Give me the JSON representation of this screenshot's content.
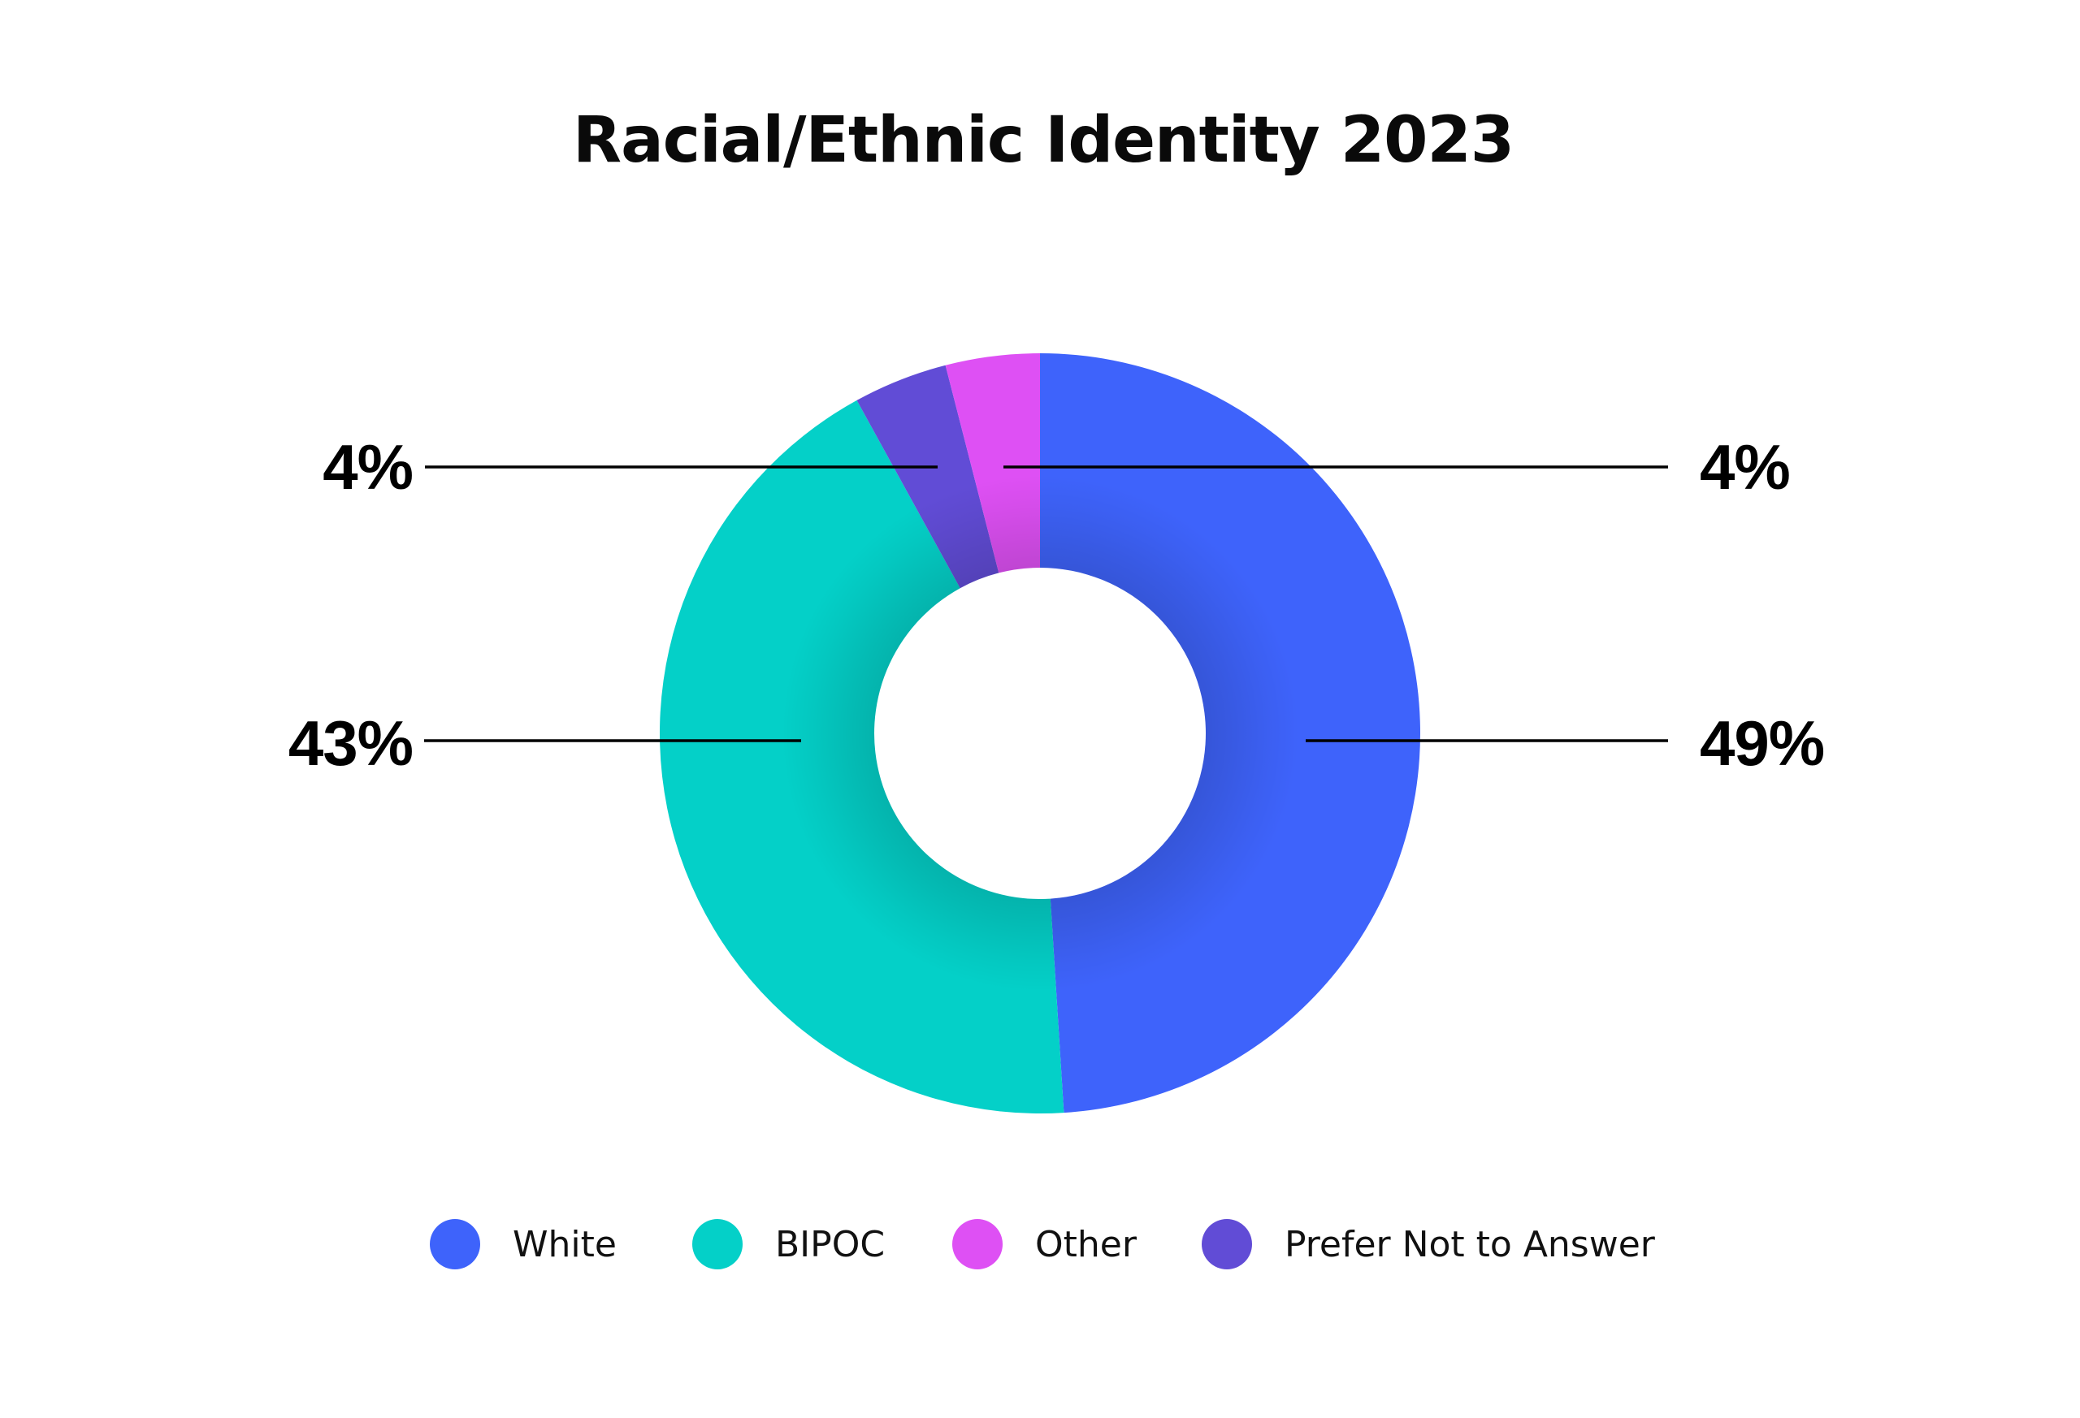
{
  "chart_data": {
    "type": "pie",
    "subtype": "donut",
    "title": "Racial/Ethnic Identity 2023",
    "categories": [
      "White",
      "BIPOC",
      "Other",
      "Prefer Not to Answer"
    ],
    "values": [
      49,
      43,
      4,
      4
    ],
    "value_labels": [
      "49%",
      "43%",
      "4%",
      "4%"
    ],
    "colors": [
      "#3E63FB",
      "#04D0C8",
      "#DE50F4",
      "#614CD6"
    ],
    "slice_order_clockwise_from_top": [
      "White",
      "BIPOC",
      "Prefer Not to Answer",
      "Other"
    ],
    "legend_position": "bottom",
    "xlabel": "",
    "ylabel": ""
  },
  "labels": {
    "other": "4%",
    "prefer_not": "4%",
    "bipoc": "43%",
    "white": "49%"
  },
  "legend": [
    {
      "label": "White",
      "color": "#3E63FB"
    },
    {
      "label": "BIPOC",
      "color": "#04D0C8"
    },
    {
      "label": "Other",
      "color": "#DE50F4"
    },
    {
      "label": "Prefer Not to Answer",
      "color": "#614CD6"
    }
  ]
}
